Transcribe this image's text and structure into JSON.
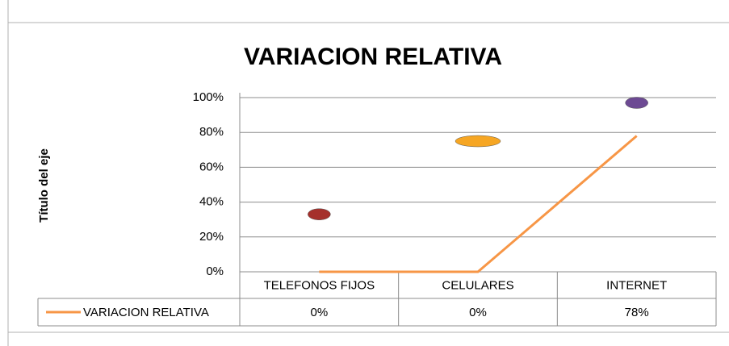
{
  "chart_data": {
    "type": "line",
    "title": "VARIACION RELATIVA",
    "y_label": "Título del eje",
    "categories": [
      "TELEFONOS FIJOS",
      "CELULARES",
      "INTERNET"
    ],
    "series": [
      {
        "name": "VARIACION RELATIVA",
        "color": "#f79646",
        "values": [
          0,
          0,
          78
        ],
        "value_labels": [
          "0%",
          "0%",
          "78%"
        ]
      },
      {
        "colors": [
          "#a5302c",
          "#f6a623",
          "#6d4a93"
        ],
        "values": [
          33,
          75,
          97
        ]
      }
    ],
    "ylim": [
      0,
      100
    ],
    "yticks": [
      {
        "value": 0,
        "label": "0%"
      },
      {
        "value": 20,
        "label": "20%"
      },
      {
        "value": 40,
        "label": "40%"
      },
      {
        "value": 60,
        "label": "60%"
      },
      {
        "value": 80,
        "label": "80%"
      },
      {
        "value": 100,
        "label": "100%"
      }
    ],
    "grid": true,
    "data_table": true
  }
}
